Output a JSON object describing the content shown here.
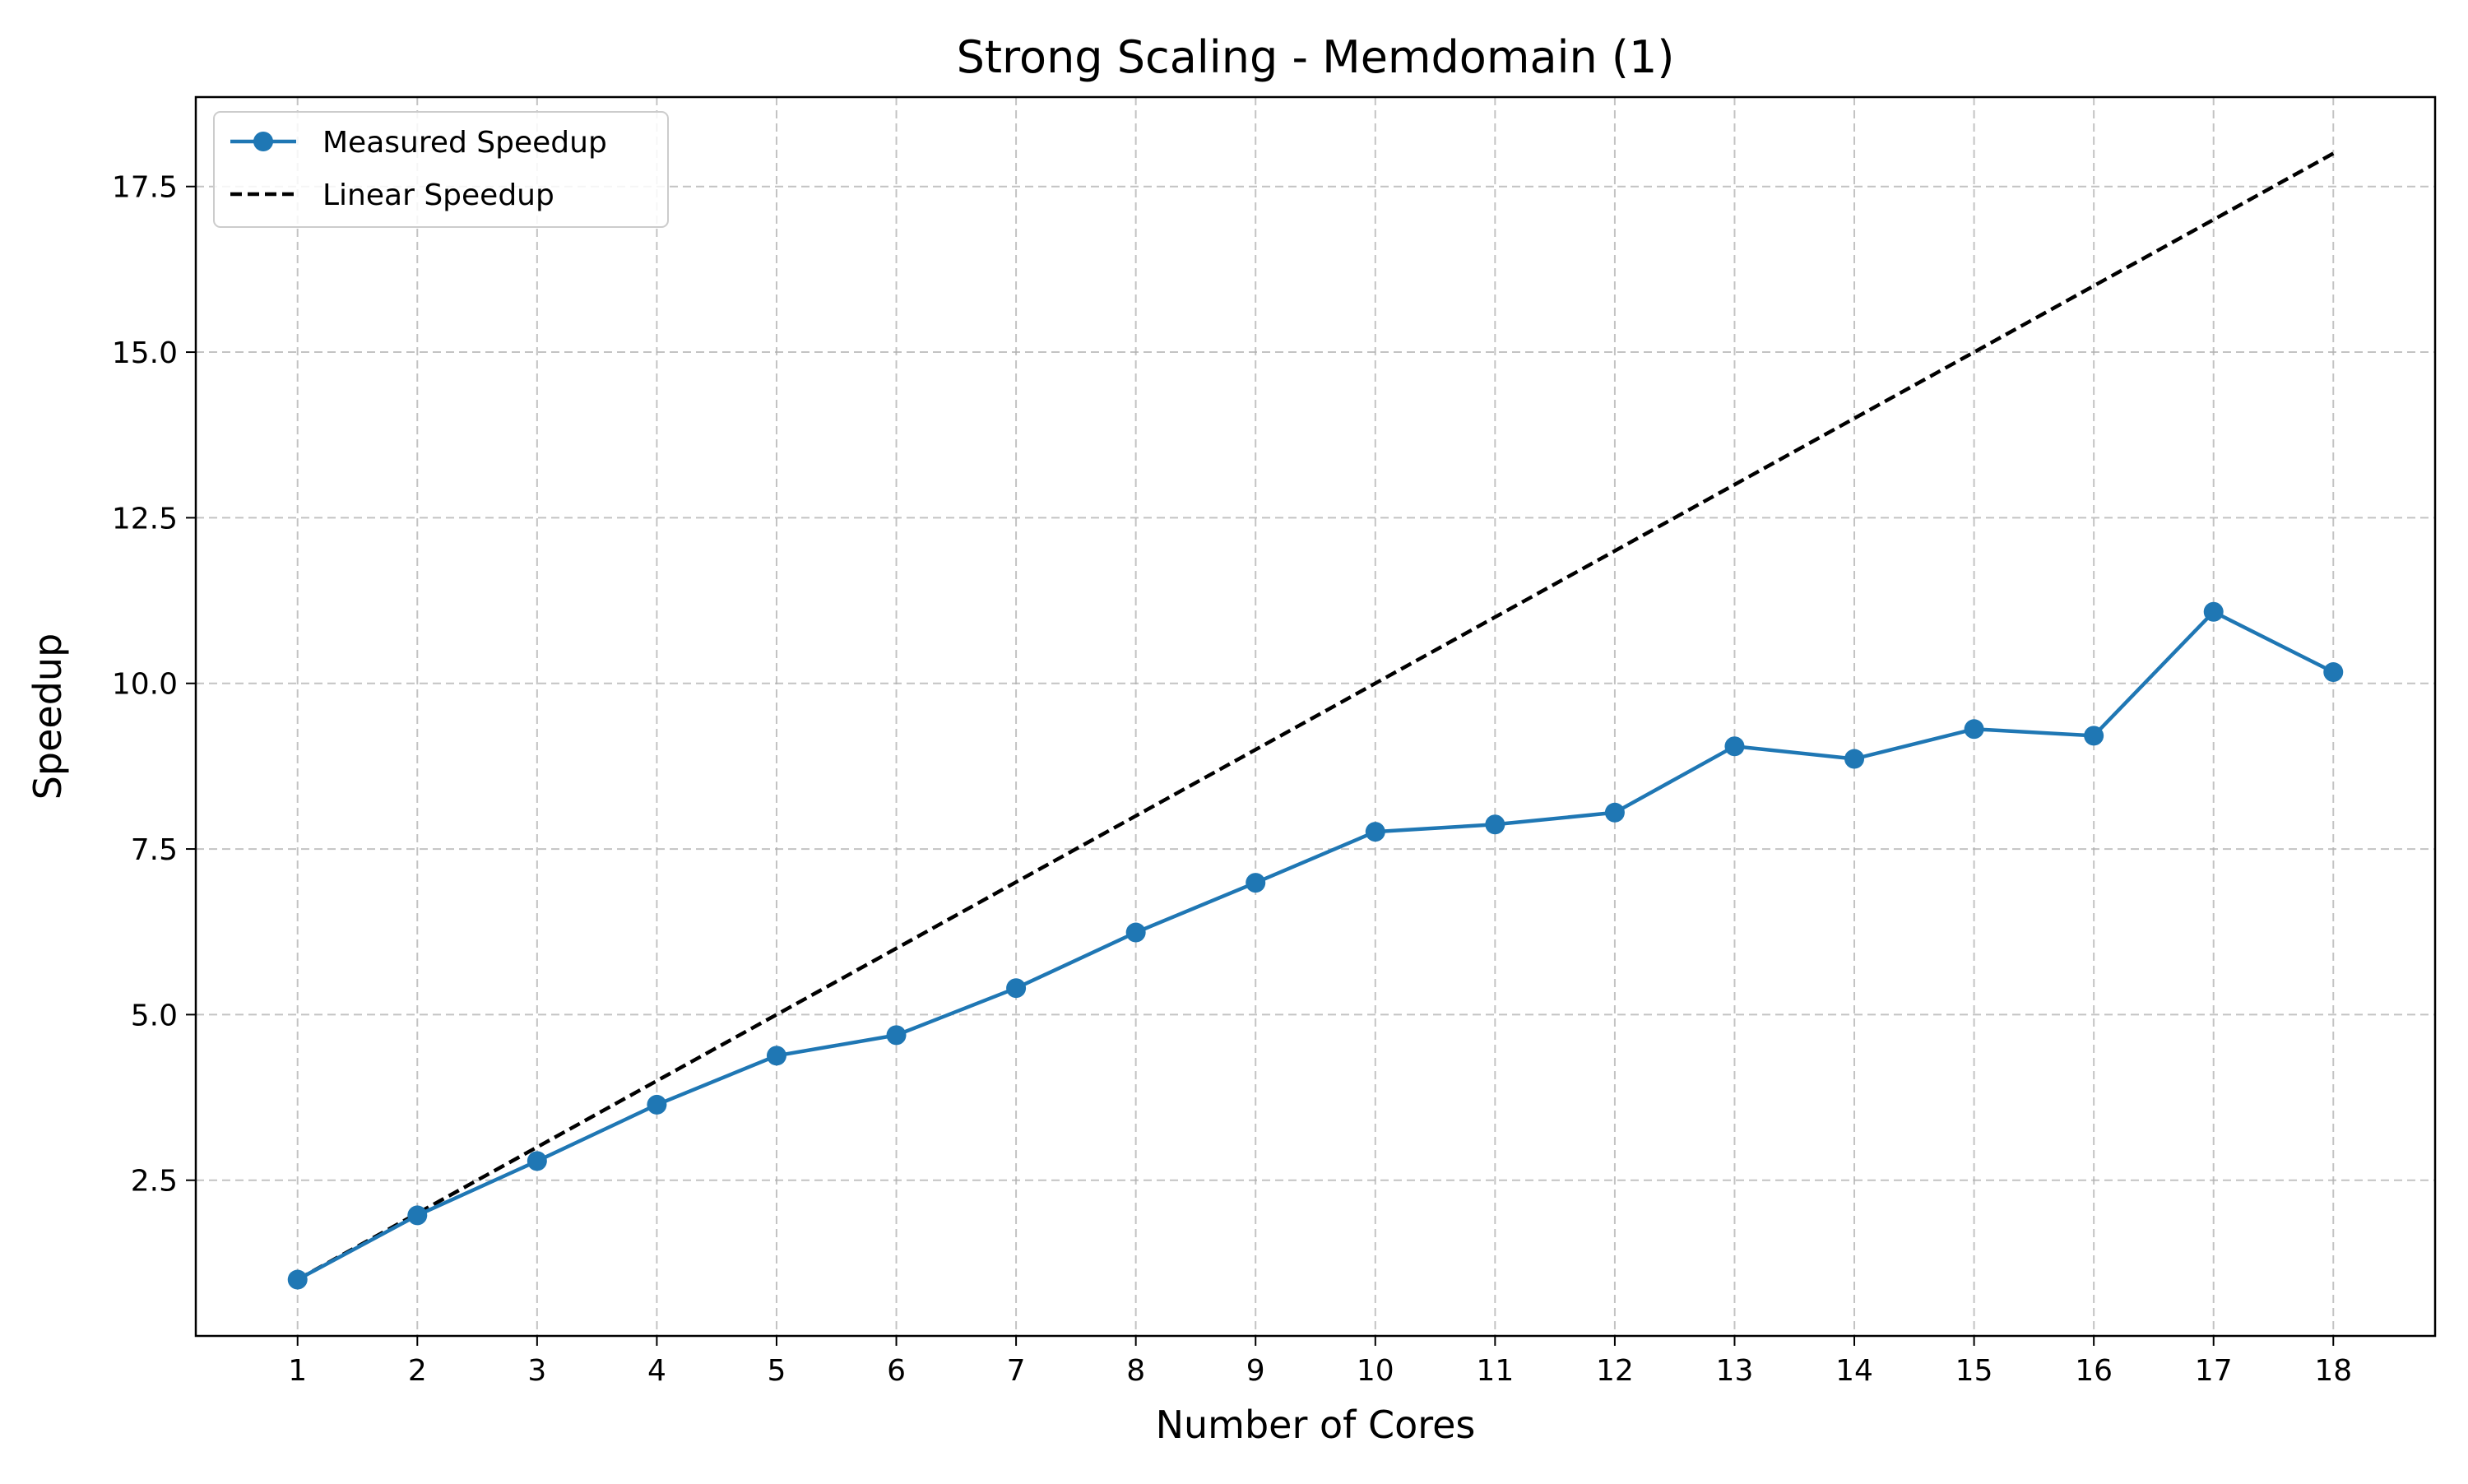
{
  "chart_data": {
    "type": "line",
    "title": "Strong Scaling - Memdomain (1)",
    "xlabel": "Number of Cores",
    "ylabel": "Speedup",
    "x": [
      1,
      2,
      3,
      4,
      5,
      6,
      7,
      8,
      9,
      10,
      11,
      12,
      13,
      14,
      15,
      16,
      17,
      18
    ],
    "xlim": [
      0.15,
      18.85
    ],
    "ylim": [
      0.15,
      18.85
    ],
    "xticks": [
      1,
      2,
      3,
      4,
      5,
      6,
      7,
      8,
      9,
      10,
      11,
      12,
      13,
      14,
      15,
      16,
      17,
      18
    ],
    "yticks": [
      2.5,
      5.0,
      7.5,
      10.0,
      12.5,
      15.0,
      17.5
    ],
    "ytick_labels": [
      "2.5",
      "5.0",
      "7.5",
      "10.0",
      "12.5",
      "15.0",
      "17.5"
    ],
    "grid": true,
    "legend_position": "upper-left",
    "series": [
      {
        "name": "Measured Speedup",
        "color": "#1f77b4",
        "style": "solid",
        "marker": "circle",
        "values": [
          1.0,
          1.97,
          2.79,
          3.64,
          4.38,
          4.69,
          5.4,
          6.24,
          6.99,
          7.76,
          7.87,
          8.05,
          9.05,
          8.86,
          9.31,
          9.21,
          11.08,
          10.17
        ]
      },
      {
        "name": "Linear Speedup",
        "color": "#000000",
        "style": "dashed",
        "marker": "none",
        "values": [
          1,
          2,
          3,
          4,
          5,
          6,
          7,
          8,
          9,
          10,
          11,
          12,
          13,
          14,
          15,
          16,
          17,
          18
        ]
      }
    ]
  }
}
